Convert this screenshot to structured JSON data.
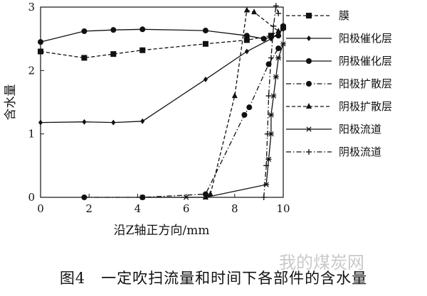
{
  "caption": "图4　一定吹扫流量和时间下各部件的含水量",
  "watermark": "我的煤炭网",
  "chart_data": {
    "type": "line",
    "xlabel": "沿Z轴正方向/mm",
    "ylabel": "含水量",
    "xlim": [
      0,
      10
    ],
    "ylim": [
      0,
      3
    ],
    "xticks": [
      0,
      2,
      4,
      6,
      8,
      10
    ],
    "yticks": [
      0,
      1,
      2,
      3
    ],
    "grid": false,
    "legend_position": "right",
    "series": [
      {
        "name": "膜",
        "marker": "square",
        "dash": "dashed",
        "x": [
          0,
          1.8,
          3.0,
          4.2,
          6.8,
          8.5,
          9.5,
          10.0
        ],
        "y": [
          2.3,
          2.2,
          2.26,
          2.32,
          2.42,
          2.48,
          2.55,
          2.68
        ]
      },
      {
        "name": "阳极催化层",
        "marker": "diamond",
        "dash": "solid",
        "x": [
          0,
          1.8,
          3.0,
          4.2,
          6.8,
          8.5,
          9.5,
          10.0
        ],
        "y": [
          1.18,
          1.19,
          1.18,
          1.2,
          1.86,
          2.3,
          2.5,
          2.65
        ]
      },
      {
        "name": "阴极催化层",
        "marker": "circle",
        "dash": "solid",
        "x": [
          0,
          1.8,
          3.0,
          4.2,
          6.8,
          8.5,
          9.2,
          9.8,
          10.0
        ],
        "y": [
          2.45,
          2.62,
          2.64,
          2.65,
          2.63,
          2.55,
          2.5,
          2.55,
          2.7
        ]
      },
      {
        "name": "阳极扩散层",
        "marker": "circle",
        "dash": "dashdot",
        "x": [
          1.8,
          4.2,
          6.8,
          8.4,
          8.6,
          9.4,
          9.8
        ],
        "y": [
          0.0,
          0.0,
          0.05,
          1.3,
          1.42,
          2.1,
          2.35
        ]
      },
      {
        "name": "阴极扩散层",
        "marker": "triangle",
        "dash": "dashed",
        "x": [
          6.8,
          7.0,
          8.0,
          8.5,
          8.8,
          9.8
        ],
        "y": [
          0.0,
          0.05,
          1.6,
          2.95,
          2.92,
          2.62
        ]
      },
      {
        "name": "阳极流道",
        "marker": "star",
        "dash": "solid",
        "x": [
          4.2,
          6.0,
          6.8,
          9.3,
          9.4,
          9.5,
          9.5,
          9.6,
          9.7,
          9.8,
          10.0
        ],
        "y": [
          0.0,
          0.0,
          0.0,
          0.2,
          0.6,
          1.0,
          1.3,
          1.6,
          1.9,
          2.2,
          2.42
        ]
      },
      {
        "name": "阴极流道",
        "marker": "plus",
        "dash": "dashdot",
        "x": [
          9.2,
          9.3,
          9.35,
          9.4,
          9.5,
          9.6,
          9.7,
          9.8
        ],
        "y": [
          0.0,
          0.5,
          1.0,
          1.6,
          2.2,
          2.7,
          3.02,
          2.9
        ]
      }
    ]
  }
}
